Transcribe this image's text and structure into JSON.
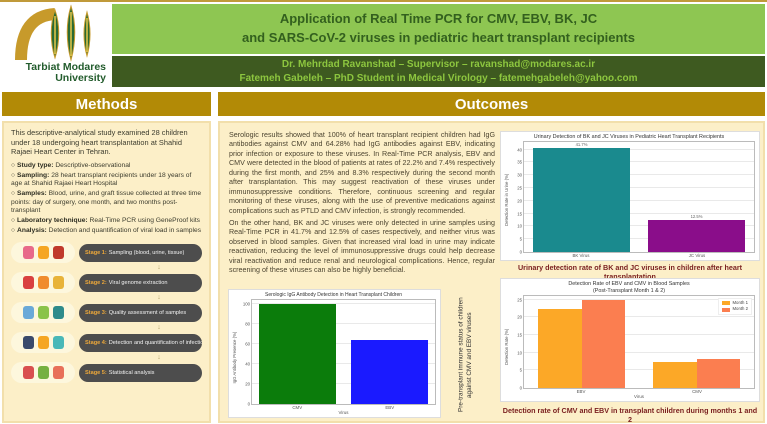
{
  "header": {
    "logo_line1": "Tarbiat Modares",
    "logo_line2": "University",
    "title_line1": "Application of Real Time PCR for CMV, EBV, BK, JC",
    "title_line2": "and SARS-CoV-2 viruses in pediatric heart transplant recipients",
    "authors_line1": "Dr. Mehrdad Ravanshad – Supervisor – ravanshad@modares.ac.ir",
    "authors_line2": "Fatemeh Gabeleh – PhD Student in Medical Virology – fatemehgabeleh@yahoo.com"
  },
  "methods": {
    "heading": "Methods",
    "intro": "This descriptive-analytical study examined 28 children under 18 undergoing heart transplantation at Shahid Rajaei Heart Center in Tehran.",
    "bullet_marker": "○",
    "bullets": [
      {
        "label": "Study type:",
        "text": "Descriptive-observational"
      },
      {
        "label": "Sampling:",
        "text": "28 heart transplant recipients under 18 years of age at Shahid Rajaei Heart Hospital"
      },
      {
        "label": "Samples:",
        "text": "Blood, urine, and graft tissue collected at three time points: day of surgery, one month, and two months post-transplant"
      },
      {
        "label": "Laboratory technique:",
        "text": "Real-Time PCR using GeneProof kits"
      },
      {
        "label": "Analysis:",
        "text": "Detection and quantification of viral load in samples"
      }
    ],
    "stages": [
      {
        "label": "Stage 1:",
        "text": "Sampling (blood, urine, tissue)",
        "icons": [
          {
            "name": "blood-tube-icon",
            "color": "#e86a8a"
          },
          {
            "name": "urine-cup-icon",
            "color": "#f5a623"
          },
          {
            "name": "tissue-sample-icon",
            "color": "#c0392b"
          }
        ]
      },
      {
        "label": "Stage 2:",
        "text": "Viral genome extraction",
        "icons": [
          {
            "name": "virus-icon",
            "color": "#d94040"
          },
          {
            "name": "dna-helix-icon",
            "color": "#f08c2e"
          },
          {
            "name": "dna-strand-icon",
            "color": "#e8b339"
          }
        ]
      },
      {
        "label": "Stage 3:",
        "text": "Quality assessment of samples",
        "icons": [
          {
            "name": "microscope-icon",
            "color": "#6aa9d8"
          },
          {
            "name": "lab-report-icon",
            "color": "#8bc34a"
          },
          {
            "name": "magnifier-virus-icon",
            "color": "#2e8b8b"
          }
        ]
      },
      {
        "label": "Stage 4:",
        "text": "Detection and quantification of infection",
        "icons": [
          {
            "name": "pcr-machine-icon",
            "color": "#3a4a6b"
          },
          {
            "name": "pcr-checklist-icon",
            "color": "#f5a623"
          },
          {
            "name": "test-tubes-icon",
            "color": "#49b8b8"
          }
        ]
      },
      {
        "label": "Stage 5:",
        "text": "Statistical analysis",
        "icons": [
          {
            "name": "curve-chart-icon",
            "color": "#d94f4f"
          },
          {
            "name": "chart-magnifier-icon",
            "color": "#76b041"
          },
          {
            "name": "pie-chart-icon",
            "color": "#e8705a"
          }
        ]
      }
    ]
  },
  "outcomes": {
    "heading": "Outcomes",
    "paragraph1": "Serologic results showed that 100% of heart transplant recipient children had IgG antibodies against CMV and 64.28% had IgG antibodies against EBV, indicating prior infection or exposure to these viruses. In Real-Time PCR analysis, EBV and CMV were detected in the blood of patients at rates of 22.2% and 7.4% respectively during the first month, and 25% and 8.3% respectively during the second month after transplantation. This may suggest reactivation of these viruses under immunosuppressive conditions. Therefore, continuous screening and regular monitoring of these viruses, along with the use of preventive medications against complications such as PTLD and CMV infection, is strongly recommended.",
    "paragraph2": "On the other hand, BK and JC viruses were only detected in urine samples using Real-Time PCR in 41.7% and 12.5% of cases respectively, and neither virus was observed in blood samples. Given that increased viral load in urine may indicate reactivation, reducing the level of immunosuppressive drugs could help decrease viral reactivation and reduce renal and neurological complications. Hence, regular screening of these viruses can also be highly beneficial.",
    "chart1_side_caption": "Pre-transplant immune status of children against CMV and EBV viruses",
    "chart2_caption": "Urinary detection rate of BK and JC viruses in children after heart transplantation",
    "chart3_caption": "Detection rate of CMV and EBV in transplant children during months 1 and 2"
  },
  "chart_data": [
    {
      "type": "bar",
      "title": "Serologic IgG Antibody Detection in Heart Transplant Children",
      "categories": [
        "CMV",
        "EBV"
      ],
      "values": [
        100,
        64.28
      ],
      "colors": [
        "#0b7c0b",
        "#1a1aff"
      ],
      "xlabel": "Virus",
      "ylabel": "IgG Antibody Presence (%)",
      "ylim": [
        0,
        105
      ],
      "yticks": [
        0,
        20,
        40,
        60,
        80,
        100
      ],
      "grid": true,
      "group_width": "42%"
    },
    {
      "type": "bar",
      "title": "Urinary Detection of BK and JC Viruses in Pediatric Heart Transplant Recipients",
      "categories": [
        "BK Virus",
        "JC Virus"
      ],
      "values": [
        41.7,
        12.5
      ],
      "value_labels": [
        "41.7%",
        "12.5%"
      ],
      "colors": [
        "#1a8a8e",
        "#8a0d8a"
      ],
      "xlabel": "",
      "ylabel": "Detection Rate in Urine (%)",
      "ylim": [
        0,
        43
      ],
      "yticks": [
        0,
        5,
        10,
        15,
        20,
        25,
        30,
        35,
        40
      ],
      "grid": true,
      "group_width": "42%"
    },
    {
      "type": "bar",
      "title": "Detection Rate of EBV and CMV in Blood Samples",
      "subtitle": "(Post-Transplant Month 1 & 2)",
      "categories": [
        "EBV",
        "CMV"
      ],
      "series": [
        {
          "name": "Month 1",
          "values": [
            22.2,
            7.4
          ],
          "color": "#fca827"
        },
        {
          "name": "Month 2",
          "values": [
            25,
            8.3
          ],
          "color": "#fb7e50"
        }
      ],
      "xlabel": "Virus",
      "ylabel": "Detection Rate (%)",
      "ylim": [
        0,
        26
      ],
      "yticks": [
        0,
        5,
        10,
        15,
        20,
        25
      ],
      "grid": true,
      "legend_position": "top-right",
      "group_width": "38%"
    }
  ]
}
